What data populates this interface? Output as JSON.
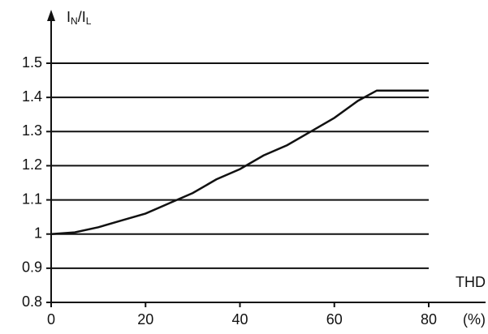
{
  "chart_data": {
    "type": "line",
    "ylabel": [
      "I",
      "N",
      "/I",
      "L"
    ],
    "xlabel": "THD",
    "xunit": "(%)",
    "x": [
      0,
      5,
      10,
      15,
      20,
      25,
      30,
      35,
      40,
      45,
      50,
      55,
      60,
      65,
      69,
      80
    ],
    "series": [
      {
        "color": "#111111",
        "values": [
          1.0,
          1.005,
          1.02,
          1.04,
          1.06,
          1.09,
          1.12,
          1.16,
          1.19,
          1.23,
          1.26,
          1.3,
          1.34,
          1.39,
          1.42,
          1.42
        ]
      }
    ],
    "xlim": [
      0,
      80
    ],
    "xticks": [
      0,
      20,
      40,
      60,
      80
    ],
    "ylim": [
      0.8,
      1.5
    ],
    "yticks": [
      0.8,
      0.9,
      1,
      1.1,
      1.2,
      1.3,
      1.4,
      1.5
    ],
    "grid": true
  }
}
